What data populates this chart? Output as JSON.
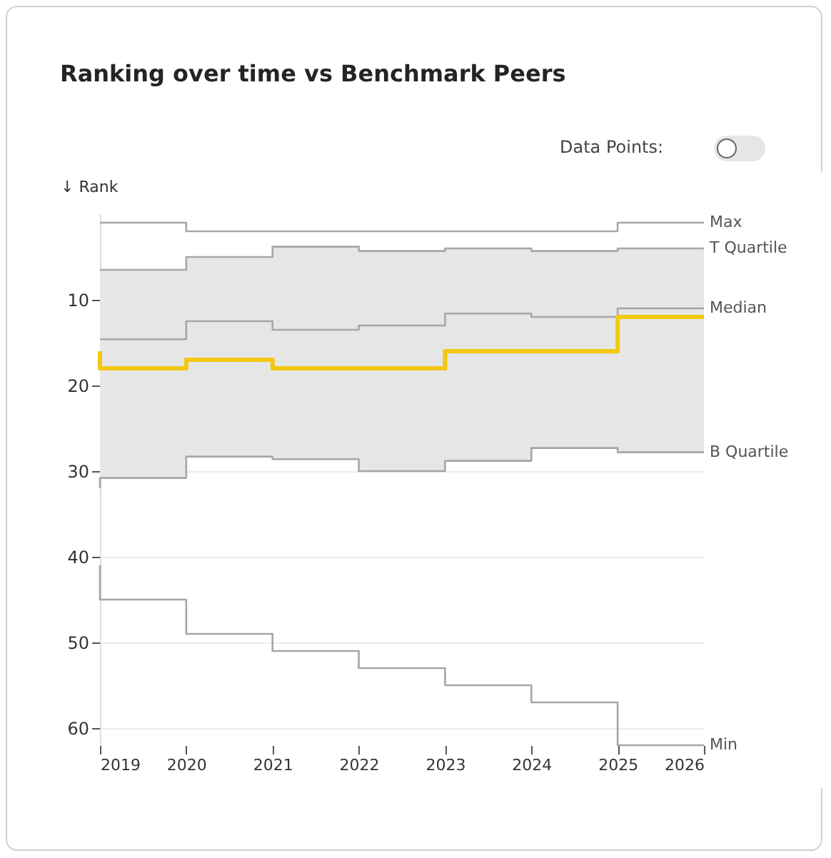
{
  "chart_data": {
    "type": "step",
    "title": "Ranking over time vs Benchmark Peers",
    "ylabel": "↓ Rank",
    "annotations": [
      "Data Points:"
    ],
    "x": [
      2019,
      2020,
      2021,
      2022,
      2023,
      2024,
      2025,
      2026
    ],
    "xlim": [
      2019,
      2026
    ],
    "xticks": [
      2019,
      2020,
      2021,
      2022,
      2023,
      2024,
      2025,
      2026
    ],
    "ylim": [
      62,
      0
    ],
    "yticks": [
      10,
      20,
      30,
      40,
      50,
      60
    ],
    "grid": "y",
    "series": [
      {
        "name": "Median",
        "color": "#a6a6a6",
        "values": [
          14.6,
          14.6,
          12.5,
          13.5,
          13,
          11.6,
          12,
          11
        ],
        "lower": [
          32,
          30.8,
          28.3,
          28.6,
          30,
          28.8,
          27.3,
          27.8
        ],
        "upper": [
          6.5,
          6.5,
          5,
          3.8,
          4.3,
          4,
          4.3,
          4
        ]
      },
      {
        "name": "Max",
        "color": "#a6a6a6",
        "values": [
          1,
          1,
          2,
          2,
          2,
          2,
          2,
          1
        ]
      },
      {
        "name": "T Quartile",
        "color": "#a6a6a6",
        "values": [
          6.5,
          6.5,
          5,
          3.8,
          4.3,
          4,
          4.3,
          4
        ]
      },
      {
        "name": "B Quartile",
        "color": "#a6a6a6",
        "values": [
          32,
          30.8,
          28.3,
          28.6,
          30,
          28.8,
          27.3,
          27.8
        ]
      },
      {
        "name": "Min",
        "color": "#a6a6a6",
        "values": [
          41,
          45,
          49,
          51,
          53,
          55,
          57,
          62
        ]
      },
      {
        "color": "#f2c811",
        "values": [
          16,
          18,
          17,
          18,
          18,
          16,
          16,
          12
        ]
      }
    ]
  }
}
